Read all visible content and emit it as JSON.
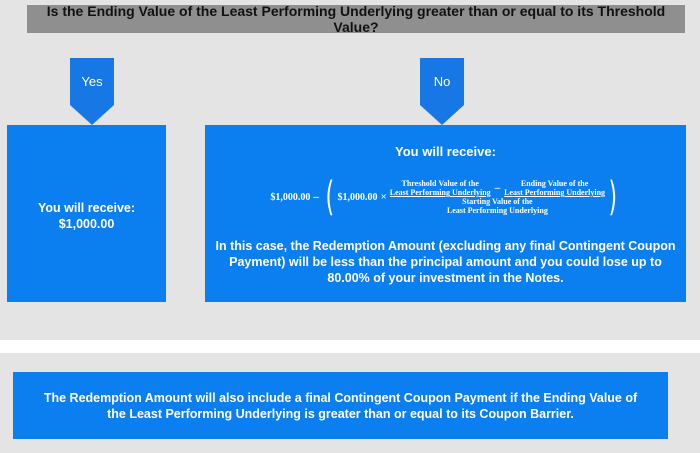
{
  "question": "Is the Ending Value of the Least Performing Underlying greater than or equal to its Threshold Value?",
  "yes_branch": {
    "arrow_label": "Yes",
    "line1": "You will receive:",
    "line2": "$1,000.00"
  },
  "no_branch": {
    "arrow_label": "No",
    "title": "You will receive:",
    "formula": {
      "principal": "$1,000.00",
      "minus": "–",
      "coefficient": "$1,000.00",
      "times": "×",
      "threshold_line1": "Threshold Value of the",
      "threshold_line2": "Least Performing Underlying",
      "inner_minus": "–",
      "ending_line1": "Ending Value of the",
      "ending_line2": "Least Performing Underlying",
      "starting_line1": "Starting Value of the",
      "starting_line2": "Least Performing Underlying"
    },
    "body": "In this case, the Redemption Amount (excluding any final Contingent Coupon Payment) will be less than the principal amount and you could lose up to 80.00% of your investment in the Notes."
  },
  "note": "The Redemption Amount will also include a final Contingent Coupon Payment if the Ending Value of the Least Performing Underlying is greater than or equal to its Coupon Barrier.",
  "colors": {
    "box_blue": "#0b7ff0",
    "arrow_blue": "#1778e5",
    "question_gray": "#8f8f8f",
    "background_gray": "#e4e4e4"
  }
}
